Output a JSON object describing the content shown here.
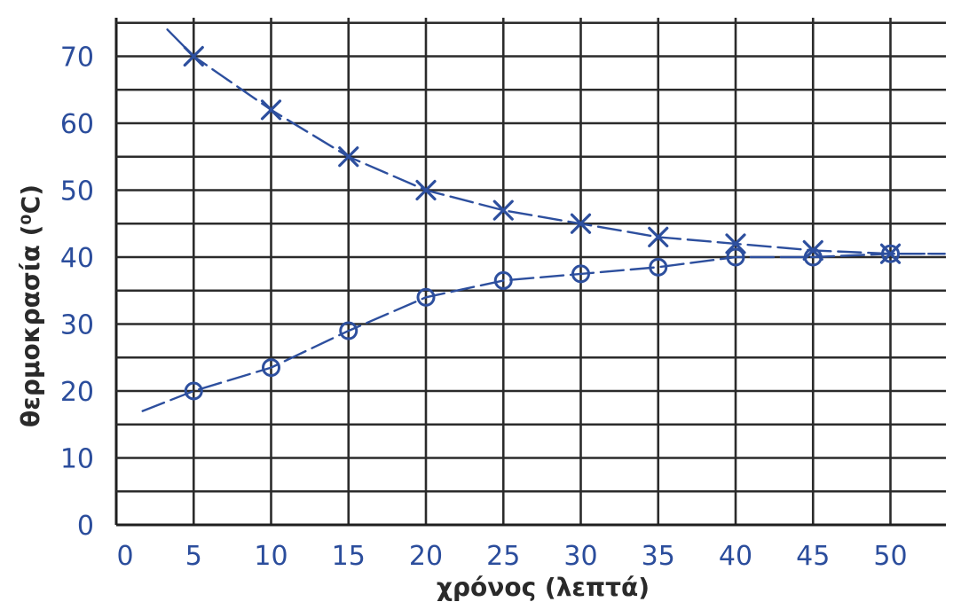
{
  "chart_data": {
    "type": "line",
    "xlabel": "χρόνος (λεπτά)",
    "ylabel": "θερμοκρασία (⁰C)",
    "x_ticks": [
      "0",
      "5",
      "10",
      "15",
      "20",
      "25",
      "30",
      "35",
      "40",
      "45",
      "50"
    ],
    "y_ticks": [
      "0",
      "10",
      "20",
      "30",
      "40",
      "50",
      "60",
      "70"
    ],
    "xlim": [
      0,
      53
    ],
    "ylim": [
      0,
      75
    ],
    "grid": true,
    "series": [
      {
        "marker": "x",
        "color": "#2d4f9e",
        "x": [
          5,
          10,
          15,
          20,
          25,
          30,
          35,
          40,
          45,
          50
        ],
        "y": [
          70,
          62,
          55,
          50,
          47,
          45,
          43,
          42,
          41,
          40.5
        ]
      },
      {
        "marker": "o",
        "color": "#2d4f9e",
        "x": [
          5,
          10,
          15,
          20,
          25,
          30,
          35,
          40,
          45,
          50
        ],
        "y": [
          20,
          23.5,
          29,
          34,
          36.5,
          37.5,
          38.5,
          40,
          40,
          40.5
        ]
      }
    ]
  }
}
